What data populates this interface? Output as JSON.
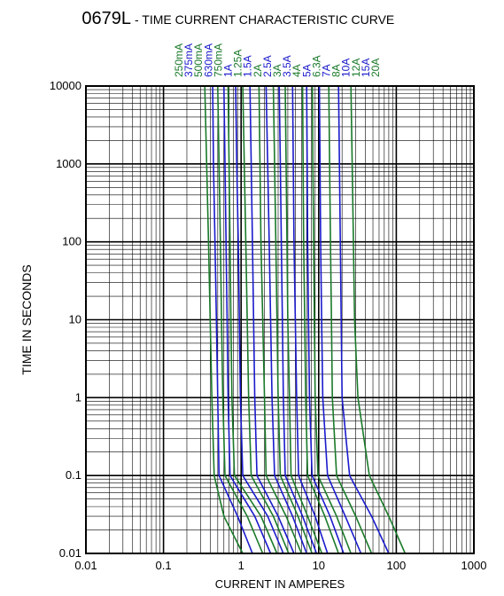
{
  "chart_data": {
    "type": "line",
    "title_part": "0679L",
    "title_rest": "- TIME CURRENT CHARACTERISTIC CURVE",
    "xlabel": "CURRENT IN AMPERES",
    "ylabel": "TIME IN SECONDS",
    "x_scale": "log",
    "y_scale": "log",
    "xlim": [
      0.01,
      1000
    ],
    "ylim": [
      0.01,
      10000
    ],
    "x_ticks": [
      "0.01",
      "0.1",
      "1",
      "10",
      "100",
      "1000"
    ],
    "y_ticks": [
      "10000",
      "1000",
      "100",
      "10",
      "1",
      "0.1",
      "0.01"
    ],
    "grid": true,
    "colors": {
      "green": "#1a7a2a",
      "blue": "#1a1acc",
      "axis": "#000000"
    },
    "series": [
      {
        "name": "250mA",
        "color": "#1a7a2a",
        "points": [
          [
            0.34,
            10000
          ],
          [
            0.36,
            1000
          ],
          [
            0.38,
            100
          ],
          [
            0.4,
            10
          ],
          [
            0.42,
            1
          ],
          [
            0.45,
            0.1
          ],
          [
            0.6,
            0.03
          ],
          [
            1.05,
            0.01
          ]
        ]
      },
      {
        "name": "375mA",
        "color": "#1a1acc",
        "points": [
          [
            0.43,
            10000
          ],
          [
            0.44,
            1000
          ],
          [
            0.46,
            100
          ],
          [
            0.48,
            10
          ],
          [
            0.5,
            1
          ],
          [
            0.52,
            0.1
          ],
          [
            0.9,
            0.03
          ],
          [
            1.4,
            0.01
          ]
        ]
      },
      {
        "name": "500mA",
        "color": "#1a7a2a",
        "points": [
          [
            0.5,
            10000
          ],
          [
            0.52,
            1000
          ],
          [
            0.54,
            100
          ],
          [
            0.56,
            10
          ],
          [
            0.58,
            1
          ],
          [
            0.62,
            0.1
          ],
          [
            1.2,
            0.03
          ],
          [
            1.9,
            0.01
          ]
        ]
      },
      {
        "name": "630mA",
        "color": "#1a1acc",
        "points": [
          [
            0.6,
            10000
          ],
          [
            0.62,
            1000
          ],
          [
            0.64,
            100
          ],
          [
            0.66,
            10
          ],
          [
            0.68,
            1
          ],
          [
            0.72,
            0.1
          ],
          [
            1.5,
            0.03
          ],
          [
            2.4,
            0.01
          ]
        ]
      },
      {
        "name": "750mA",
        "color": "#1a7a2a",
        "points": [
          [
            0.68,
            10000
          ],
          [
            0.7,
            1000
          ],
          [
            0.72,
            100
          ],
          [
            0.74,
            10
          ],
          [
            0.76,
            1
          ],
          [
            0.82,
            0.1
          ],
          [
            1.8,
            0.03
          ],
          [
            2.9,
            0.01
          ]
        ]
      },
      {
        "name": "1A",
        "color": "#1a1acc",
        "points": [
          [
            0.85,
            10000
          ],
          [
            0.88,
            1000
          ],
          [
            0.92,
            100
          ],
          [
            0.95,
            10
          ],
          [
            0.98,
            1
          ],
          [
            1.05,
            0.1
          ],
          [
            2.2,
            0.03
          ],
          [
            3.5,
            0.01
          ]
        ]
      },
      {
        "name": "1.25A",
        "color": "#1a7a2a",
        "points": [
          [
            1.05,
            10000
          ],
          [
            1.1,
            1000
          ],
          [
            1.15,
            100
          ],
          [
            1.2,
            10
          ],
          [
            1.25,
            1
          ],
          [
            1.35,
            0.1
          ],
          [
            2.6,
            0.03
          ],
          [
            4.1,
            0.01
          ]
        ]
      },
      {
        "name": "1.5A",
        "color": "#1a1acc",
        "points": [
          [
            1.3,
            10000
          ],
          [
            1.35,
            1000
          ],
          [
            1.4,
            100
          ],
          [
            1.45,
            10
          ],
          [
            1.5,
            1
          ],
          [
            1.6,
            0.1
          ],
          [
            3.0,
            0.03
          ],
          [
            4.8,
            0.01
          ]
        ]
      },
      {
        "name": "2A",
        "color": "#1a7a2a",
        "points": [
          [
            1.7,
            10000
          ],
          [
            1.75,
            1000
          ],
          [
            1.8,
            100
          ],
          [
            1.9,
            10
          ],
          [
            2.0,
            1
          ],
          [
            2.1,
            0.1
          ],
          [
            3.8,
            0.03
          ],
          [
            6.0,
            0.01
          ]
        ]
      },
      {
        "name": "2.5A",
        "color": "#1a1acc",
        "points": [
          [
            2.1,
            10000
          ],
          [
            2.2,
            1000
          ],
          [
            2.3,
            100
          ],
          [
            2.4,
            10
          ],
          [
            2.5,
            1
          ],
          [
            2.7,
            0.1
          ],
          [
            4.6,
            0.03
          ],
          [
            7.0,
            0.01
          ]
        ]
      },
      {
        "name": "3A",
        "color": "#1a7a2a",
        "points": [
          [
            2.6,
            10000
          ],
          [
            2.7,
            1000
          ],
          [
            2.8,
            100
          ],
          [
            2.9,
            10
          ],
          [
            3.0,
            1
          ],
          [
            3.2,
            0.1
          ],
          [
            5.4,
            0.03
          ],
          [
            8.2,
            0.01
          ]
        ]
      },
      {
        "name": "3.5A",
        "color": "#1a1acc",
        "points": [
          [
            3.1,
            10000
          ],
          [
            3.2,
            1000
          ],
          [
            3.3,
            100
          ],
          [
            3.4,
            10
          ],
          [
            3.5,
            1
          ],
          [
            3.7,
            0.1
          ],
          [
            6.2,
            0.03
          ],
          [
            9.4,
            0.01
          ]
        ]
      },
      {
        "name": "4A",
        "color": "#1a7a2a",
        "points": [
          [
            3.7,
            10000
          ],
          [
            3.8,
            1000
          ],
          [
            3.9,
            100
          ],
          [
            4.0,
            10
          ],
          [
            4.2,
            1
          ],
          [
            4.4,
            0.1
          ],
          [
            7.2,
            0.03
          ],
          [
            11,
            0.01
          ]
        ]
      },
      {
        "name": "5A",
        "color": "#1a1acc",
        "points": [
          [
            4.6,
            10000
          ],
          [
            4.7,
            1000
          ],
          [
            4.8,
            100
          ],
          [
            5.0,
            10
          ],
          [
            5.2,
            1
          ],
          [
            5.5,
            0.1
          ],
          [
            9.0,
            0.03
          ],
          [
            13,
            0.01
          ]
        ]
      },
      {
        "name": "6.3A",
        "color": "#1a7a2a",
        "points": [
          [
            6.2,
            10000
          ],
          [
            6.3,
            1000
          ],
          [
            6.4,
            100
          ],
          [
            6.6,
            10
          ],
          [
            6.8,
            1
          ],
          [
            7.2,
            0.1
          ],
          [
            12,
            0.03
          ],
          [
            18,
            0.01
          ]
        ]
      },
      {
        "name": "7A",
        "color": "#1a1acc",
        "points": [
          [
            7.0,
            10000
          ],
          [
            7.1,
            1000
          ],
          [
            7.2,
            100
          ],
          [
            7.4,
            10
          ],
          [
            7.6,
            1
          ],
          [
            8.2,
            0.1
          ],
          [
            14,
            0.03
          ],
          [
            21,
            0.01
          ]
        ]
      },
      {
        "name": "8A",
        "color": "#1a7a2a",
        "points": [
          [
            8.3,
            10000
          ],
          [
            8.4,
            1000
          ],
          [
            8.6,
            100
          ],
          [
            8.8,
            10
          ],
          [
            9.0,
            1
          ],
          [
            9.8,
            0.1
          ],
          [
            17,
            0.03
          ],
          [
            26,
            0.01
          ]
        ]
      },
      {
        "name": "10A",
        "color": "#1a1acc",
        "points": [
          [
            10.2,
            10000
          ],
          [
            10.4,
            1000
          ],
          [
            10.6,
            100
          ],
          [
            10.9,
            10
          ],
          [
            11.3,
            1
          ],
          [
            13,
            0.1
          ],
          [
            22,
            0.03
          ],
          [
            35,
            0.01
          ]
        ]
      },
      {
        "name": "12A",
        "color": "#1a7a2a",
        "points": [
          [
            13.5,
            10000
          ],
          [
            13.8,
            1000
          ],
          [
            14.2,
            100
          ],
          [
            14.6,
            10
          ],
          [
            15,
            1
          ],
          [
            17,
            0.1
          ],
          [
            30,
            0.03
          ],
          [
            48,
            0.01
          ]
        ]
      },
      {
        "name": "15A",
        "color": "#1a1acc",
        "points": [
          [
            18,
            10000
          ],
          [
            18.5,
            1000
          ],
          [
            19,
            100
          ],
          [
            19.5,
            10
          ],
          [
            20,
            1
          ],
          [
            25,
            0.1
          ],
          [
            48,
            0.03
          ],
          [
            80,
            0.01
          ]
        ]
      },
      {
        "name": "20A",
        "color": "#1a7a2a",
        "points": [
          [
            26,
            10000
          ],
          [
            27,
            1000
          ],
          [
            28,
            100
          ],
          [
            29,
            10
          ],
          [
            32,
            1
          ],
          [
            45,
            0.1
          ],
          [
            80,
            0.03
          ],
          [
            130,
            0.01
          ]
        ]
      }
    ]
  }
}
